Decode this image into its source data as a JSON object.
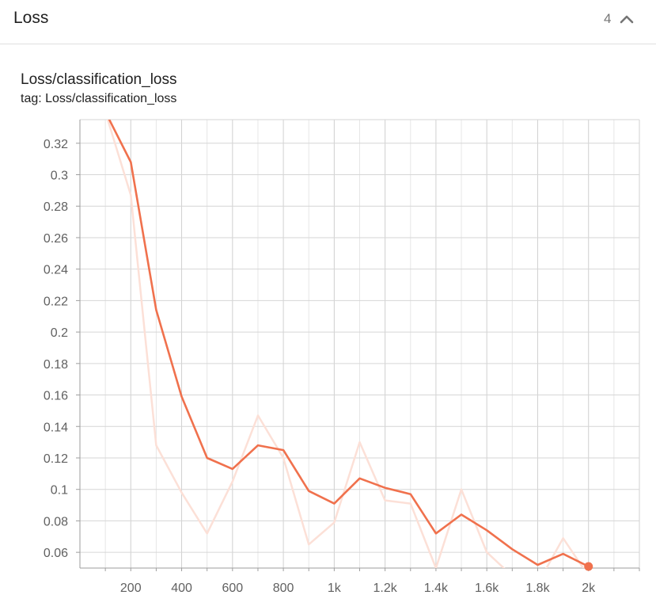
{
  "header": {
    "title": "Loss",
    "count": "4",
    "collapse_icon": "chevron-up-icon"
  },
  "card": {
    "title": "Loss/classification_loss",
    "tag": "tag: Loss/classification_loss"
  },
  "chart_data": {
    "type": "line",
    "title": "Loss/classification_loss",
    "xlabel": "",
    "ylabel": "",
    "xlim": [
      0,
      2200
    ],
    "ylim": [
      0.05,
      0.335
    ],
    "grid": true,
    "x_ticks": [
      {
        "value": 200,
        "label": "200"
      },
      {
        "value": 400,
        "label": "400"
      },
      {
        "value": 600,
        "label": "600"
      },
      {
        "value": 800,
        "label": "800"
      },
      {
        "value": 1000,
        "label": "1k"
      },
      {
        "value": 1200,
        "label": "1.2k"
      },
      {
        "value": 1400,
        "label": "1.4k"
      },
      {
        "value": 1600,
        "label": "1.6k"
      },
      {
        "value": 1800,
        "label": "1.8k"
      },
      {
        "value": 2000,
        "label": "2k"
      }
    ],
    "y_ticks": [
      {
        "value": 0.06,
        "label": "0.06"
      },
      {
        "value": 0.08,
        "label": "0.08"
      },
      {
        "value": 0.1,
        "label": "0.1"
      },
      {
        "value": 0.12,
        "label": "0.12"
      },
      {
        "value": 0.14,
        "label": "0.14"
      },
      {
        "value": 0.16,
        "label": "0.16"
      },
      {
        "value": 0.18,
        "label": "0.18"
      },
      {
        "value": 0.2,
        "label": "0.2"
      },
      {
        "value": 0.22,
        "label": "0.22"
      },
      {
        "value": 0.24,
        "label": "0.24"
      },
      {
        "value": 0.26,
        "label": "0.26"
      },
      {
        "value": 0.28,
        "label": "0.28"
      },
      {
        "value": 0.3,
        "label": "0.3"
      },
      {
        "value": 0.32,
        "label": "0.32"
      }
    ],
    "series": [
      {
        "role": "raw",
        "color": "#fce0d7",
        "x": [
          100,
          200,
          300,
          400,
          500,
          600,
          700,
          800,
          900,
          1000,
          1100,
          1200,
          1300,
          1400,
          1500,
          1600,
          1700,
          1800,
          1900,
          2000
        ],
        "values": [
          0.34,
          0.287,
          0.128,
          0.098,
          0.072,
          0.105,
          0.147,
          0.12,
          0.065,
          0.079,
          0.13,
          0.093,
          0.091,
          0.05,
          0.1,
          0.06,
          0.045,
          0.04,
          0.069,
          0.045
        ]
      },
      {
        "role": "smoothed",
        "color": "#f0714d",
        "x": [
          100,
          200,
          300,
          400,
          500,
          600,
          700,
          800,
          900,
          1000,
          1100,
          1200,
          1300,
          1400,
          1500,
          1600,
          1700,
          1800,
          1900,
          2000
        ],
        "values": [
          0.34,
          0.308,
          0.214,
          0.159,
          0.12,
          0.113,
          0.128,
          0.125,
          0.099,
          0.091,
          0.107,
          0.101,
          0.097,
          0.072,
          0.084,
          0.074,
          0.062,
          0.052,
          0.059,
          0.051
        ],
        "end_marker": true
      }
    ]
  }
}
